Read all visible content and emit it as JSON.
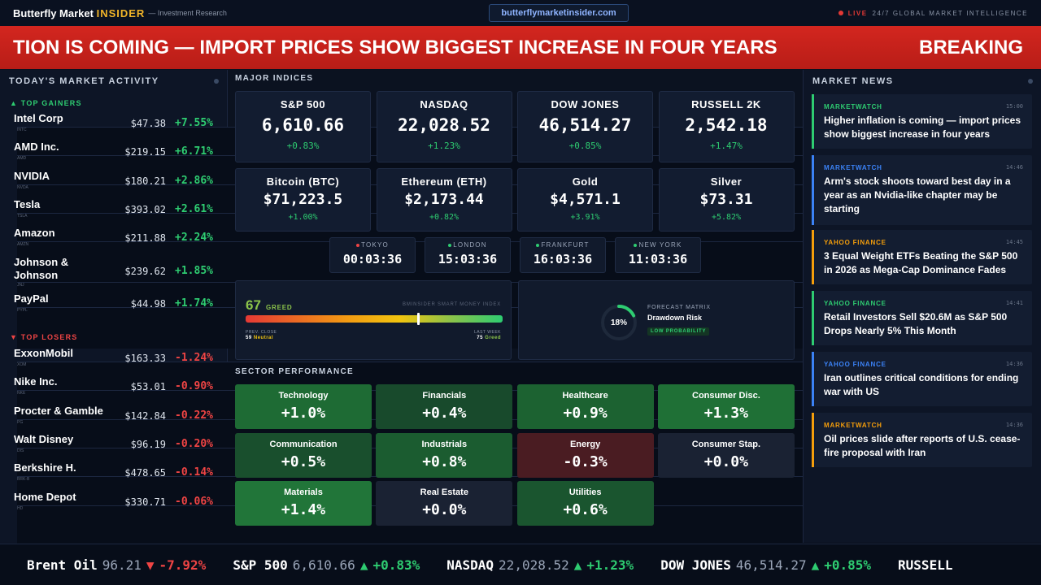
{
  "header": {
    "brand_main": "Butterfly Market",
    "brand_accent": "INSIDER",
    "brand_sub": "— Investment Research",
    "url": "butterflymarketinsider.com",
    "live_label": "LIVE",
    "tagline": "24/7 GLOBAL MARKET INTELLIGENCE"
  },
  "breaking": {
    "headline": "TION IS COMING — IMPORT PRICES SHOW BIGGEST INCREASE IN FOUR YEARS",
    "tag": "BREAKING"
  },
  "left": {
    "title": "TODAY'S MARKET ACTIVITY",
    "gainers_label": "▲ TOP GAINERS",
    "losers_label": "▼ TOP LOSERS",
    "gainers": [
      {
        "name": "Intel Corp",
        "ticker": "INTC",
        "price": "$47.38",
        "change": "+7.55%"
      },
      {
        "name": "AMD Inc.",
        "ticker": "AMD",
        "price": "$219.15",
        "change": "+6.71%"
      },
      {
        "name": "NVIDIA",
        "ticker": "NVDA",
        "price": "$180.21",
        "change": "+2.86%"
      },
      {
        "name": "Tesla",
        "ticker": "TSLA",
        "price": "$393.02",
        "change": "+2.61%"
      },
      {
        "name": "Amazon",
        "ticker": "AMZN",
        "price": "$211.88",
        "change": "+2.24%"
      },
      {
        "name": "Johnson & Johnson",
        "ticker": "JNJ",
        "price": "$239.62",
        "change": "+1.85%"
      },
      {
        "name": "PayPal",
        "ticker": "PYPL",
        "price": "$44.98",
        "change": "+1.74%"
      }
    ],
    "losers": [
      {
        "name": "ExxonMobil",
        "ticker": "XOM",
        "price": "$163.33",
        "change": "-1.24%"
      },
      {
        "name": "Nike Inc.",
        "ticker": "NKE",
        "price": "$53.01",
        "change": "-0.90%"
      },
      {
        "name": "Procter & Gamble",
        "ticker": "PG",
        "price": "$142.84",
        "change": "-0.22%"
      },
      {
        "name": "Walt Disney",
        "ticker": "DIS",
        "price": "$96.19",
        "change": "-0.20%"
      },
      {
        "name": "Berkshire H.",
        "ticker": "BRK-B",
        "price": "$478.65",
        "change": "-0.14%"
      },
      {
        "name": "Home Depot",
        "ticker": "HD",
        "price": "$330.71",
        "change": "-0.06%"
      }
    ]
  },
  "center": {
    "indices_title": "MAJOR INDICES",
    "indices": [
      {
        "label": "S&P 500",
        "value": "6,610.66",
        "change": "+0.83%"
      },
      {
        "label": "NASDAQ",
        "value": "22,028.52",
        "change": "+1.23%"
      },
      {
        "label": "DOW JONES",
        "value": "46,514.27",
        "change": "+0.85%"
      },
      {
        "label": "RUSSELL 2K",
        "value": "2,542.18",
        "change": "+1.47%"
      }
    ],
    "assets": [
      {
        "label": "Bitcoin (BTC)",
        "value": "$71,223.5",
        "change": "+1.00%"
      },
      {
        "label": "Ethereum (ETH)",
        "value": "$2,173.44",
        "change": "+0.82%"
      },
      {
        "label": "Gold",
        "value": "$4,571.1",
        "change": "+3.91%"
      },
      {
        "label": "Silver",
        "value": "$73.31",
        "change": "+5.82%"
      }
    ],
    "clocks": [
      {
        "city": "TOKYO",
        "time": "00:03:36",
        "dot": "#ef4444"
      },
      {
        "city": "LONDON",
        "time": "15:03:36",
        "dot": "#2ecc71"
      },
      {
        "city": "FRANKFURT",
        "time": "16:03:36",
        "dot": "#2ecc71"
      },
      {
        "city": "NEW YORK",
        "time": "11:03:36",
        "dot": "#2ecc71"
      }
    ],
    "fear_greed": {
      "score": "67",
      "label": "GREED",
      "index_name": "BMINSIDER SMART MONEY INDEX",
      "level": 0.67,
      "prev_label": "PREV. CLOSE",
      "prev_value": "59",
      "prev_word": "Neutral",
      "last_label": "LAST WEEK",
      "last_value": "75",
      "last_word": "Greed"
    },
    "forecast": {
      "title": "FORECAST MATRIX",
      "name": "Drawdown Risk",
      "badge": "LOW PROBABILITY",
      "percent_label": "18%",
      "percent": 18
    },
    "sector_title": "SECTOR PERFORMANCE",
    "sectors": [
      {
        "name": "Technology",
        "value": "+1.0%",
        "color": "#1e6b34"
      },
      {
        "name": "Financials",
        "value": "+0.4%",
        "color": "#184a2c"
      },
      {
        "name": "Healthcare",
        "value": "+0.9%",
        "color": "#1c6231"
      },
      {
        "name": "Consumer Disc.",
        "value": "+1.3%",
        "color": "#1f7036"
      },
      {
        "name": "Communication",
        "value": "+0.5%",
        "color": "#194f2d"
      },
      {
        "name": "Industrials",
        "value": "+0.8%",
        "color": "#1b5c30"
      },
      {
        "name": "Energy",
        "value": "-0.3%",
        "color": "#4a1c22"
      },
      {
        "name": "Consumer Stap.",
        "value": "+0.0%",
        "color": "#1a2233"
      },
      {
        "name": "Materials",
        "value": "+1.4%",
        "color": "#217539"
      },
      {
        "name": "Real Estate",
        "value": "+0.0%",
        "color": "#1a2233"
      },
      {
        "name": "Utilities",
        "value": "+0.6%",
        "color": "#1a552f"
      }
    ]
  },
  "news": {
    "title": "MARKET NEWS",
    "items": [
      {
        "source": "MARKETWATCH",
        "time": "15:00",
        "text": "Higher inflation is coming — import prices show biggest increase in four years",
        "color": "#2ecc71"
      },
      {
        "source": "MARKETWATCH",
        "time": "14:46",
        "text": "Arm's stock shoots toward best day in a year as an Nvidia-like chapter may be starting",
        "color": "#3b82f6"
      },
      {
        "source": "YAHOO FINANCE",
        "time": "14:45",
        "text": "3 Equal Weight ETFs Beating the S&P 500 in 2026 as Mega-Cap Dominance Fades",
        "color": "#f59e0b"
      },
      {
        "source": "YAHOO FINANCE",
        "time": "14:41",
        "text": "Retail Investors Sell $20.6M as S&P 500 Drops Nearly 5% This Month",
        "color": "#2ecc71"
      },
      {
        "source": "YAHOO FINANCE",
        "time": "14:36",
        "text": "Iran outlines critical conditions for ending war with US",
        "color": "#3b82f6"
      },
      {
        "source": "MARKETWATCH",
        "time": "14:36",
        "text": "Oil prices slide after reports of U.S. cease-fire proposal with Iran",
        "color": "#f59e0b"
      }
    ]
  },
  "ticker": [
    {
      "name": "Brent Oil",
      "value": "96.21",
      "arrow": "▼",
      "change": "-7.92%",
      "dir": "down"
    },
    {
      "name": "S&P 500",
      "value": "6,610.66",
      "arrow": "▲",
      "change": "+0.83%",
      "dir": "up"
    },
    {
      "name": "NASDAQ",
      "value": "22,028.52",
      "arrow": "▲",
      "change": "+1.23%",
      "dir": "up"
    },
    {
      "name": "DOW JONES",
      "value": "46,514.27",
      "arrow": "▲",
      "change": "+0.85%",
      "dir": "up"
    },
    {
      "name": "RUSSELL",
      "value": "",
      "arrow": "",
      "change": "",
      "dir": "up"
    }
  ]
}
